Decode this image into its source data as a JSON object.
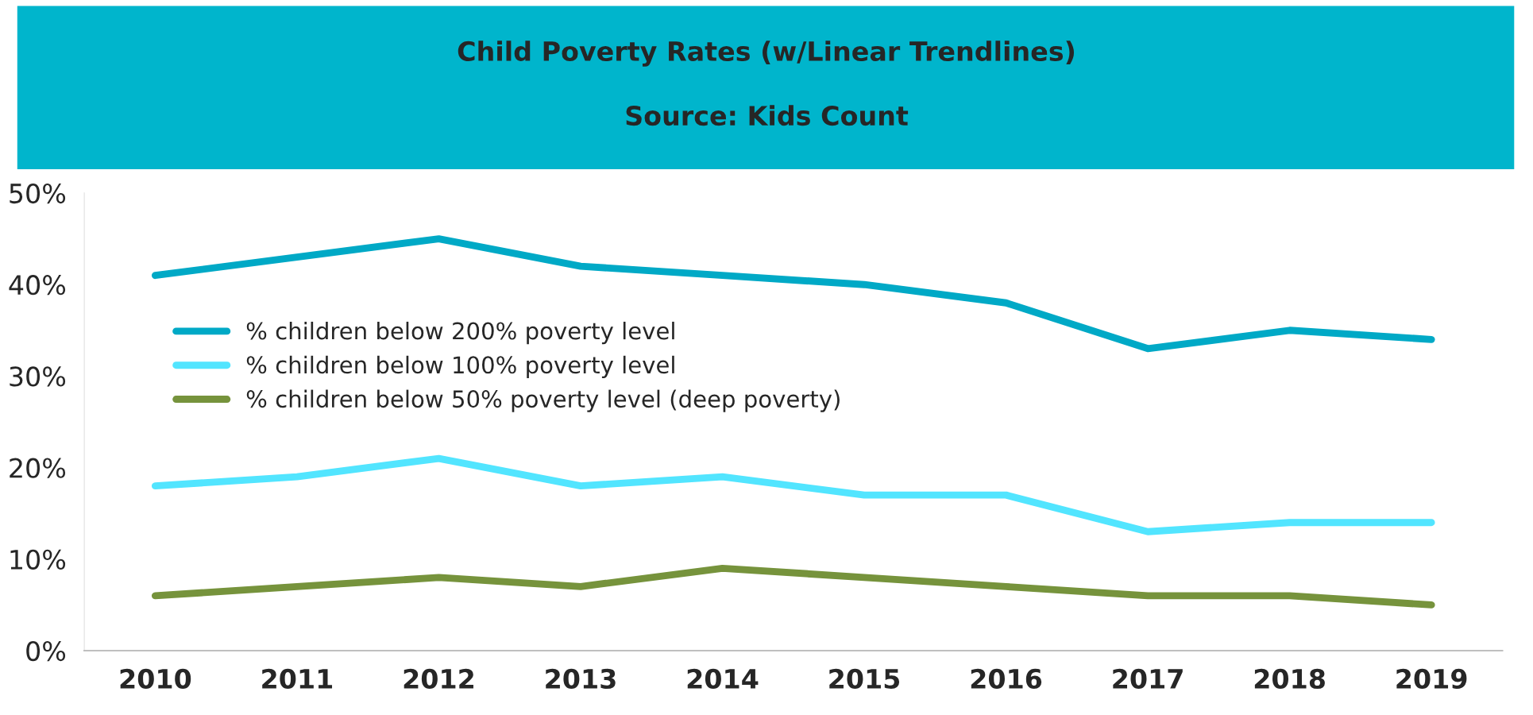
{
  "chart_data": {
    "type": "line",
    "title": "Child Poverty Rates (w/Linear Trendlines)",
    "subtitle": "Source: Kids Count",
    "categories": [
      "2010",
      "2011",
      "2012",
      "2013",
      "2014",
      "2015",
      "2016",
      "2017",
      "2018",
      "2019"
    ],
    "series": [
      {
        "name": "% children below 200% poverty level",
        "color": "#00a9c6",
        "values": [
          41,
          43,
          45,
          42,
          41,
          40,
          38,
          33,
          35,
          34
        ]
      },
      {
        "name": "% children below 100% poverty level",
        "color": "#52e5ff",
        "values": [
          18,
          19,
          21,
          18,
          19,
          17,
          17,
          13,
          14,
          14
        ]
      },
      {
        "name": "% children below 50% poverty level (deep poverty)",
        "color": "#76933c",
        "values": [
          6,
          7,
          8,
          7,
          9,
          8,
          7,
          6,
          6,
          5
        ]
      }
    ],
    "ylim": [
      0,
      50
    ],
    "yticks": [
      {
        "value": 0,
        "label": "0%"
      },
      {
        "value": 10,
        "label": "10%"
      },
      {
        "value": 20,
        "label": "20%"
      },
      {
        "value": 30,
        "label": "30%"
      },
      {
        "value": 40,
        "label": "40%"
      },
      {
        "value": 50,
        "label": "50%"
      }
    ],
    "grid": false,
    "legend": "left",
    "marker": "none",
    "line_style": "solid"
  }
}
